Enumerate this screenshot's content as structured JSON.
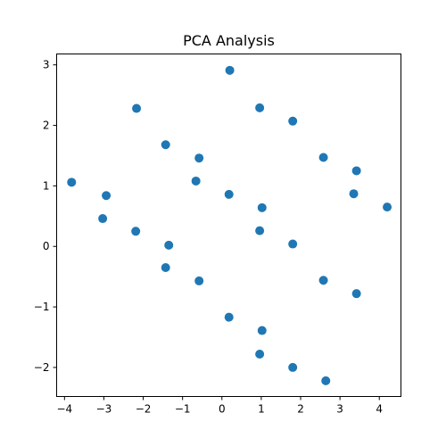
{
  "chart_data": {
    "type": "scatter",
    "title": "PCA Analysis",
    "xlabel": "",
    "ylabel": "",
    "xlim": [
      -4.2,
      4.55
    ],
    "ylim": [
      -2.48,
      3.18
    ],
    "xticks": [
      -4,
      -3,
      -2,
      -1,
      0,
      1,
      2,
      3,
      4
    ],
    "yticks": [
      -2,
      -1,
      0,
      1,
      2,
      3
    ],
    "xtick_labels": [
      "−4",
      "−3",
      "−2",
      "−1",
      "0",
      "1",
      "2",
      "3",
      "4"
    ],
    "ytick_labels": [
      "−2",
      "−1",
      "0",
      "1",
      "2",
      "3"
    ],
    "grid": false,
    "marker_color": "#1f77b4",
    "points": [
      {
        "x": 0.2,
        "y": 2.91
      },
      {
        "x": -2.17,
        "y": 2.28
      },
      {
        "x": 0.96,
        "y": 2.29
      },
      {
        "x": 1.8,
        "y": 2.07
      },
      {
        "x": -1.43,
        "y": 1.68
      },
      {
        "x": -0.58,
        "y": 1.46
      },
      {
        "x": 2.58,
        "y": 1.47
      },
      {
        "x": 3.42,
        "y": 1.25
      },
      {
        "x": -3.82,
        "y": 1.06
      },
      {
        "x": -0.66,
        "y": 1.08
      },
      {
        "x": -2.94,
        "y": 0.84
      },
      {
        "x": 0.18,
        "y": 0.86
      },
      {
        "x": 3.35,
        "y": 0.87
      },
      {
        "x": 1.02,
        "y": 0.64
      },
      {
        "x": 4.2,
        "y": 0.65
      },
      {
        "x": -3.03,
        "y": 0.46
      },
      {
        "x": -2.19,
        "y": 0.25
      },
      {
        "x": 0.96,
        "y": 0.26
      },
      {
        "x": -1.35,
        "y": 0.02
      },
      {
        "x": 1.8,
        "y": 0.04
      },
      {
        "x": -1.43,
        "y": -0.35
      },
      {
        "x": -0.58,
        "y": -0.57
      },
      {
        "x": 2.58,
        "y": -0.56
      },
      {
        "x": 3.42,
        "y": -0.78
      },
      {
        "x": 0.18,
        "y": -1.17
      },
      {
        "x": 1.02,
        "y": -1.39
      },
      {
        "x": 0.96,
        "y": -1.78
      },
      {
        "x": 1.8,
        "y": -2.0
      },
      {
        "x": 2.64,
        "y": -2.22
      }
    ]
  }
}
